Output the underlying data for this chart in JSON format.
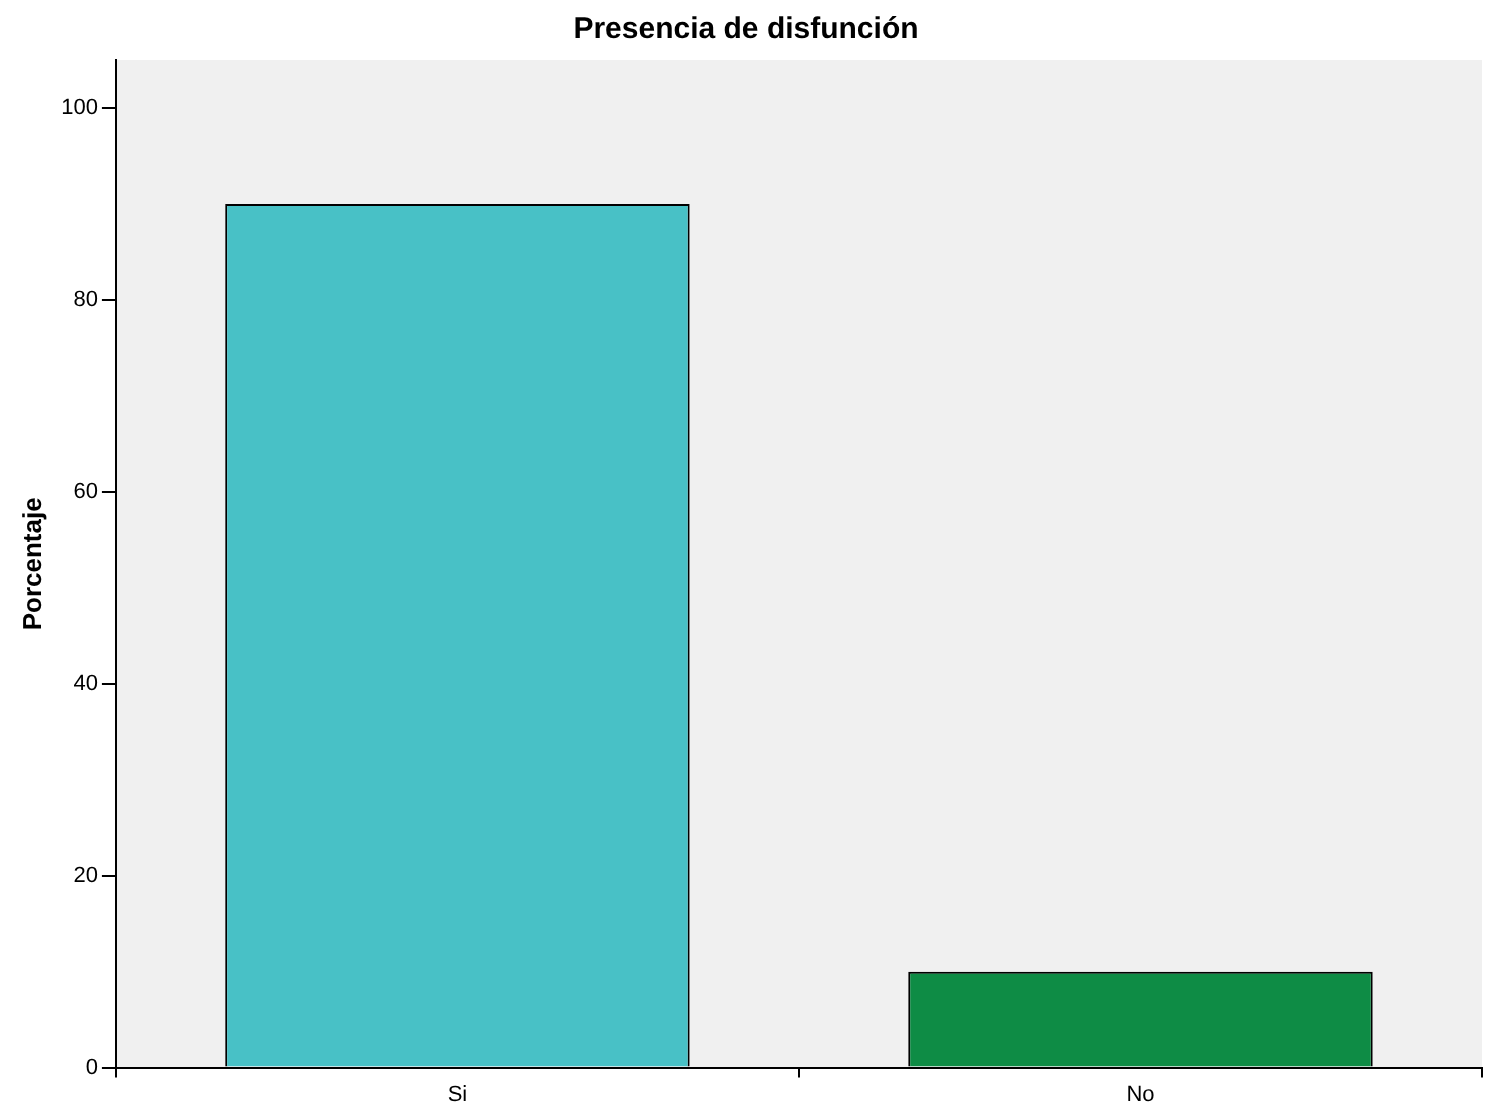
{
  "chart_data": {
    "type": "bar",
    "title": "Presencia de disfunción",
    "ylabel": "Porcentaje",
    "categories": [
      "Si",
      "No"
    ],
    "values": [
      90,
      10
    ],
    "colors": [
      "#48c1c6",
      "#0e8c45"
    ],
    "ylim": [
      0,
      105
    ],
    "yticks": [
      0,
      20,
      40,
      60,
      80,
      100
    ],
    "grid": false,
    "legend": false
  }
}
